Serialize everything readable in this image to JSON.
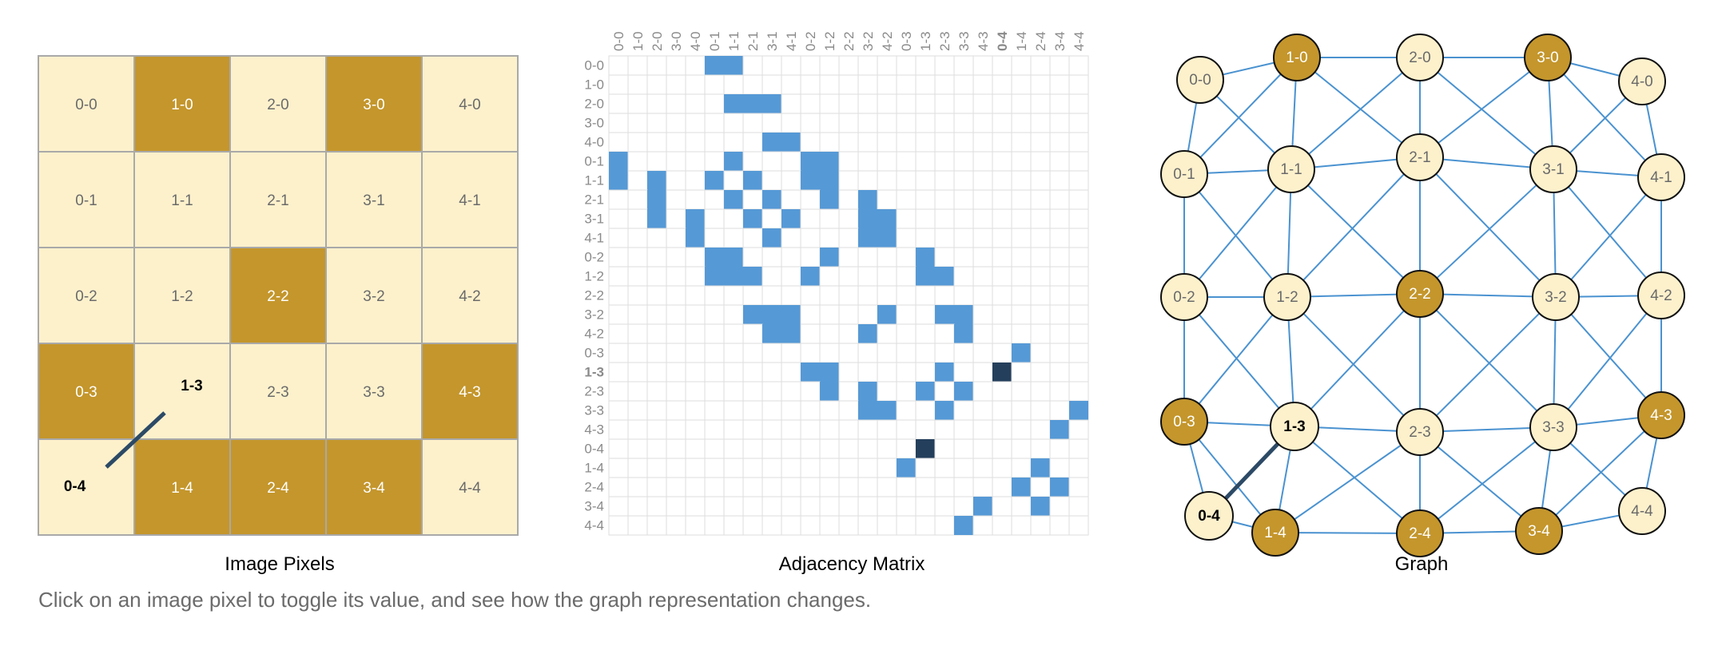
{
  "captions": {
    "pixels": "Image Pixels",
    "matrix": "Adjacency Matrix",
    "graph": "Graph"
  },
  "instructions": "Click on an image pixel to toggle its value, and see how the graph representation changes.",
  "colors": {
    "pixel_on": "#c4962c",
    "pixel_off": "#fdf1cc",
    "pixel_border": "#a9a9a9",
    "matrix_fill": "#5599d6",
    "matrix_highlight": "#243f5c",
    "matrix_grid": "#dddddd",
    "edge": "#4a92d0",
    "node_stroke": "#111111",
    "highlight_line": "#2c4a66"
  },
  "pixels": {
    "labels_order": "column-row",
    "grid": [
      [
        0,
        1,
        0,
        1,
        0
      ],
      [
        0,
        0,
        0,
        0,
        0
      ],
      [
        0,
        0,
        1,
        0,
        0
      ],
      [
        1,
        0,
        0,
        0,
        1
      ],
      [
        0,
        1,
        1,
        1,
        0
      ]
    ],
    "labels": [
      [
        "0-0",
        "1-0",
        "2-0",
        "3-0",
        "4-0"
      ],
      [
        "0-1",
        "1-1",
        "2-1",
        "3-1",
        "4-1"
      ],
      [
        "0-2",
        "1-2",
        "2-2",
        "3-2",
        "4-2"
      ],
      [
        "0-3",
        "1-3",
        "2-3",
        "3-3",
        "4-3"
      ],
      [
        "0-4",
        "1-4",
        "2-4",
        "3-4",
        "4-4"
      ]
    ]
  },
  "highlight": {
    "from": "0-4",
    "to": "1-3"
  },
  "matrix": {
    "labels": [
      "0-0",
      "1-0",
      "2-0",
      "3-0",
      "4-0",
      "0-1",
      "1-1",
      "2-1",
      "3-1",
      "4-1",
      "0-2",
      "1-2",
      "2-2",
      "3-2",
      "4-2",
      "0-3",
      "1-3",
      "2-3",
      "3-3",
      "4-3",
      "0-4",
      "1-4",
      "2-4",
      "3-4",
      "4-4"
    ]
  },
  "graph": {
    "nodes": [
      "0-0",
      "1-0",
      "2-0",
      "3-0",
      "4-0",
      "0-1",
      "1-1",
      "2-1",
      "3-1",
      "4-1",
      "0-2",
      "1-2",
      "2-2",
      "3-2",
      "4-2",
      "0-3",
      "1-3",
      "2-3",
      "3-3",
      "4-3",
      "0-4",
      "1-4",
      "2-4",
      "3-4",
      "4-4"
    ]
  }
}
